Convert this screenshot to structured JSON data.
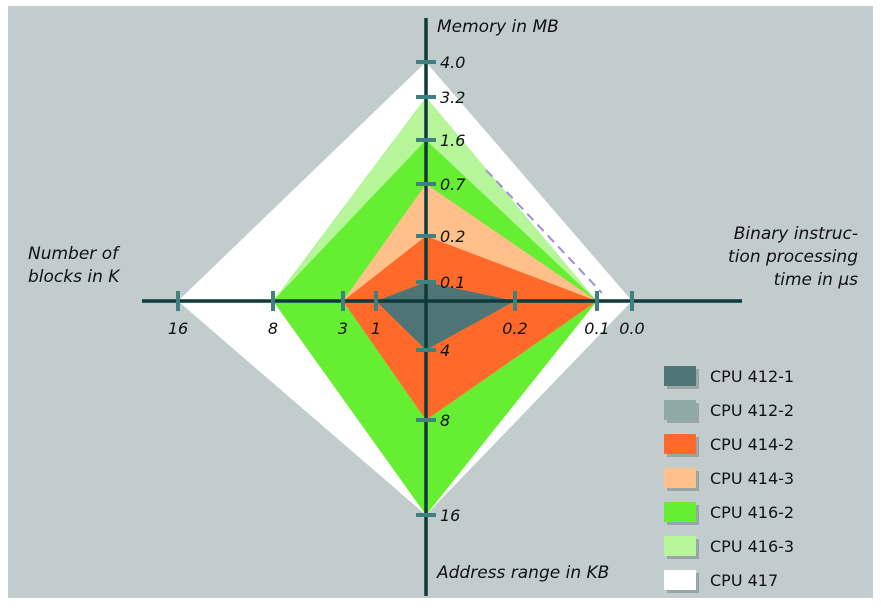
{
  "chart_data": {
    "type": "radar",
    "axes": [
      {
        "key": "memory",
        "title_lines": [
          "Memory in MB"
        ],
        "ticks": [
          "0.1",
          "0.2",
          "0.7",
          "1.6",
          "3.2",
          "4.0"
        ]
      },
      {
        "key": "binary",
        "title_lines": [
          "Binary instruc-",
          "tion processing",
          "time in μs"
        ],
        "ticks": [
          "0.2",
          "0.1",
          "0.0"
        ]
      },
      {
        "key": "address",
        "title_lines": [
          "Address range in KB"
        ],
        "ticks": [
          "4",
          "8",
          "16"
        ]
      },
      {
        "key": "blocks",
        "title_lines": [
          "Number of",
          "blocks in K"
        ],
        "ticks": [
          "1",
          "3",
          "8",
          "16"
        ]
      }
    ],
    "series": [
      {
        "name": "CPU 417",
        "color": "#ffffff",
        "values": {
          "memory": "4.0",
          "binary": "0.0",
          "address": "16",
          "blocks": "16"
        }
      },
      {
        "name": "CPU 416-3",
        "color": "#b7f59a",
        "values": {
          "memory": "3.2",
          "binary": "0.1",
          "address": "16",
          "blocks": "8"
        }
      },
      {
        "name": "CPU 416-2",
        "color": "#66ee33",
        "values": {
          "memory": "1.6",
          "binary": "0.1",
          "address": "16",
          "blocks": "8"
        }
      },
      {
        "name": "CPU 414-3",
        "color": "#ffc08a",
        "values": {
          "memory": "0.7",
          "binary": "0.1",
          "address": "8",
          "blocks": "3"
        }
      },
      {
        "name": "CPU 414-2",
        "color": "#ff6a2a",
        "values": {
          "memory": "0.2",
          "binary": "0.1",
          "address": "8",
          "blocks": "3"
        }
      },
      {
        "name": "CPU 412-2",
        "color": "#8fa9a6",
        "values": {
          "memory": "0.1",
          "binary": "0.2",
          "address": "4",
          "blocks": "1"
        }
      },
      {
        "name": "CPU 412-1",
        "color": "#4f7476",
        "values": {
          "memory": "0.1",
          "binary": "0.2",
          "address": "4",
          "blocks": "1"
        }
      }
    ],
    "legend_order": [
      "CPU 412-1",
      "CPU 412-2",
      "CPU 414-2",
      "CPU 414-3",
      "CPU 416-2",
      "CPU 416-3",
      "CPU 417"
    ],
    "legend_position": "bottom-right",
    "background_color": "#c3cccc",
    "axis_color": "#0e3a3a",
    "tick_color": "#3f8080"
  }
}
